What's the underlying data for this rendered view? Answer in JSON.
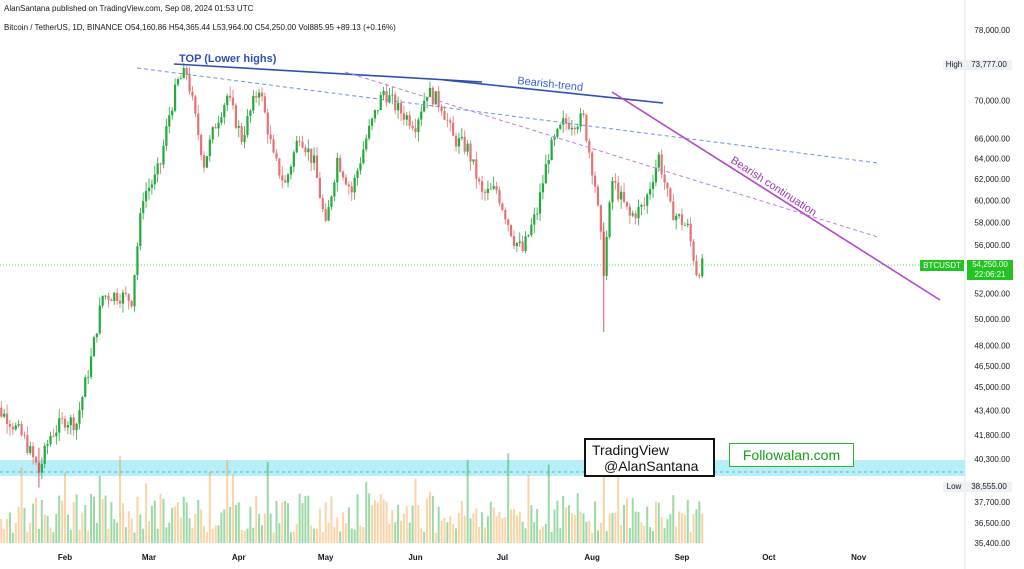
{
  "header": {
    "published": "AlanSantana published on TradingView.com, Sep 08, 2024 01:53 UTC",
    "symbol_info": "Bitcoin / TetherUS, 1D, BINANCE",
    "open": "O54,160.86",
    "high": "H54,365.44",
    "low": "L53,964.00",
    "close": "C54,250.00",
    "volume": "Vol885.95",
    "change": "+89.13 (+0.16%)"
  },
  "annotations": {
    "top_label": "TOP (Lower highs)",
    "bearish_trend": "Bearish-trend",
    "bearish_continuation": "Bearish continuation"
  },
  "watermarks": {
    "tradingview_line1": "TradingView",
    "tradingview_line2": "@AlanSantana",
    "followalan": "Followalan.com"
  },
  "badges": {
    "high_label": "High",
    "high_value": "73,777.00",
    "low_label": "Low",
    "low_value": "38,555.00",
    "symbol": "BTCUSDT",
    "price": "54,250.00",
    "countdown": "22:06:21"
  },
  "colors": {
    "up": "#089981",
    "up_alt": "#22ab3a",
    "down": "#f23645",
    "down_alt": "#e57373",
    "trend_blue": "#2f4fb5",
    "dashed_blue": "#6a93e6",
    "purple": "#b449c9",
    "dashed_purple": "#c17ae0",
    "support_zone": "#9fe8f5",
    "price_line": "#22c322"
  },
  "chart_data": {
    "type": "candlestick",
    "title": "Bitcoin / TetherUS, 1D, BINANCE",
    "price_scale": "log",
    "y_ticks": [
      78000,
      73777,
      70000,
      66000,
      64000,
      62000,
      60000,
      58000,
      56000,
      54250,
      52000,
      50000,
      48000,
      46500,
      45000,
      43400,
      41800,
      40300,
      38555,
      37700,
      36500,
      35400
    ],
    "y_tick_labels": [
      "78,000.00",
      "73,777.00",
      "70,000.00",
      "66,000.00",
      "64,000.00",
      "62,000.00",
      "60,000.00",
      "58,000.00",
      "56,000.00",
      "54,250.00",
      "52,000.00",
      "50,000.00",
      "48,000.00",
      "46,500.00",
      "45,000.00",
      "43,400.00",
      "41,800.00",
      "40,300.00",
      "38,555.00",
      "37,700.00",
      "36,500.00",
      "35,400.00"
    ],
    "x_ticks": [
      {
        "label": "Feb",
        "date": "2024-02-01"
      },
      {
        "label": "Mar",
        "date": "2024-03-01"
      },
      {
        "label": "Apr",
        "date": "2024-04-01"
      },
      {
        "label": "May",
        "date": "2024-05-01"
      },
      {
        "label": "Jun",
        "date": "2024-06-01"
      },
      {
        "label": "Jul",
        "date": "2024-07-01"
      },
      {
        "label": "Aug",
        "date": "2024-08-01"
      },
      {
        "label": "Sep",
        "date": "2024-09-01"
      },
      {
        "label": "Oct",
        "date": "2024-10-01"
      },
      {
        "label": "Nov",
        "date": "2024-11-01"
      }
    ],
    "last_price": 54250,
    "all_time_high": 73777,
    "range_low": 38555,
    "close_series": [
      {
        "date": "2024-01-05",
        "close": 44000
      },
      {
        "date": "2024-01-12",
        "close": 43000
      },
      {
        "date": "2024-01-18",
        "close": 41500
      },
      {
        "date": "2024-01-23",
        "close": 39500
      },
      {
        "date": "2024-01-27",
        "close": 41800
      },
      {
        "date": "2024-02-01",
        "close": 42800
      },
      {
        "date": "2024-02-05",
        "close": 42600
      },
      {
        "date": "2024-02-10",
        "close": 47000
      },
      {
        "date": "2024-02-14",
        "close": 51800
      },
      {
        "date": "2024-02-19",
        "close": 51900
      },
      {
        "date": "2024-02-24",
        "close": 51500
      },
      {
        "date": "2024-02-28",
        "close": 60500
      },
      {
        "date": "2024-03-03",
        "close": 62000
      },
      {
        "date": "2024-03-05",
        "close": 63500
      },
      {
        "date": "2024-03-08",
        "close": 68500
      },
      {
        "date": "2024-03-11",
        "close": 72000
      },
      {
        "date": "2024-03-14",
        "close": 73100
      },
      {
        "date": "2024-03-17",
        "close": 68000
      },
      {
        "date": "2024-03-20",
        "close": 63500
      },
      {
        "date": "2024-03-24",
        "close": 67500
      },
      {
        "date": "2024-03-28",
        "close": 70500
      },
      {
        "date": "2024-04-02",
        "close": 66000
      },
      {
        "date": "2024-04-08",
        "close": 71500
      },
      {
        "date": "2024-04-13",
        "close": 64000
      },
      {
        "date": "2024-04-17",
        "close": 61500
      },
      {
        "date": "2024-04-22",
        "close": 66500
      },
      {
        "date": "2024-04-27",
        "close": 63500
      },
      {
        "date": "2024-05-01",
        "close": 57500
      },
      {
        "date": "2024-05-05",
        "close": 64000
      },
      {
        "date": "2024-05-10",
        "close": 60800
      },
      {
        "date": "2024-05-15",
        "close": 66000
      },
      {
        "date": "2024-05-21",
        "close": 71000
      },
      {
        "date": "2024-05-26",
        "close": 69000
      },
      {
        "date": "2024-06-01",
        "close": 67500
      },
      {
        "date": "2024-06-05",
        "close": 71000
      },
      {
        "date": "2024-06-10",
        "close": 69500
      },
      {
        "date": "2024-06-14",
        "close": 66000
      },
      {
        "date": "2024-06-19",
        "close": 65000
      },
      {
        "date": "2024-06-24",
        "close": 60500
      },
      {
        "date": "2024-06-29",
        "close": 61000
      },
      {
        "date": "2024-07-05",
        "close": 56500
      },
      {
        "date": "2024-07-08",
        "close": 55500
      },
      {
        "date": "2024-07-13",
        "close": 59000
      },
      {
        "date": "2024-07-17",
        "close": 64500
      },
      {
        "date": "2024-07-22",
        "close": 67500
      },
      {
        "date": "2024-07-29",
        "close": 68000
      },
      {
        "date": "2024-08-02",
        "close": 61500
      },
      {
        "date": "2024-08-05",
        "close": 54000
      },
      {
        "date": "2024-08-08",
        "close": 61800
      },
      {
        "date": "2024-08-14",
        "close": 58500
      },
      {
        "date": "2024-08-19",
        "close": 59500
      },
      {
        "date": "2024-08-24",
        "close": 64200
      },
      {
        "date": "2024-08-28",
        "close": 59200
      },
      {
        "date": "2024-09-03",
        "close": 57500
      },
      {
        "date": "2024-09-06",
        "close": 53800
      },
      {
        "date": "2024-09-08",
        "close": 54250
      }
    ],
    "volume_bars": 90
  }
}
